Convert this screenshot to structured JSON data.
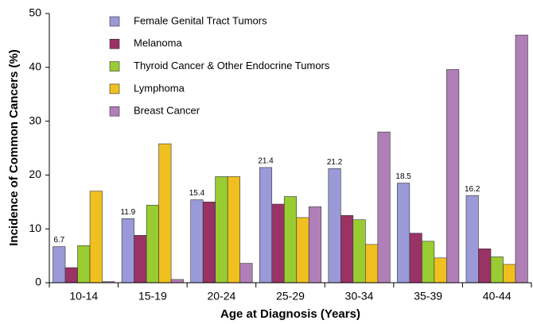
{
  "chart_data": {
    "type": "bar",
    "xlabel": "Age at Diagnosis (Years)",
    "ylabel": "Incidence of Common Cancers (%)",
    "categories": [
      "10-14",
      "15-19",
      "20-24",
      "25-29",
      "30-34",
      "35-39",
      "40-44"
    ],
    "series": [
      {
        "name": "Female Genital Tract Tumors",
        "color": "#9a9ad8",
        "show_labels": true,
        "values": [
          6.7,
          11.9,
          15.4,
          21.4,
          21.2,
          18.5,
          16.2
        ]
      },
      {
        "name": "Melanoma",
        "color": "#993366",
        "values": [
          2.8,
          8.8,
          15.0,
          14.6,
          12.5,
          9.2,
          6.3
        ]
      },
      {
        "name": "Thyroid Cancer & Other Endocrine Tumors",
        "color": "#99cc33",
        "values": [
          6.9,
          14.4,
          19.7,
          16.0,
          11.7,
          7.7,
          4.8
        ]
      },
      {
        "name": "Lymphoma",
        "color": "#f0c020",
        "values": [
          17.0,
          25.8,
          19.7,
          12.1,
          7.1,
          4.6,
          3.4
        ]
      },
      {
        "name": "Breast Cancer",
        "color": "#b07fb8",
        "values": [
          0.2,
          0.6,
          3.6,
          14.1,
          28.0,
          39.6,
          46.0
        ]
      }
    ],
    "ylim": [
      0,
      50
    ],
    "yticks": [
      0,
      10,
      20,
      30,
      40,
      50
    ],
    "grid": false,
    "legend": "upper left"
  }
}
